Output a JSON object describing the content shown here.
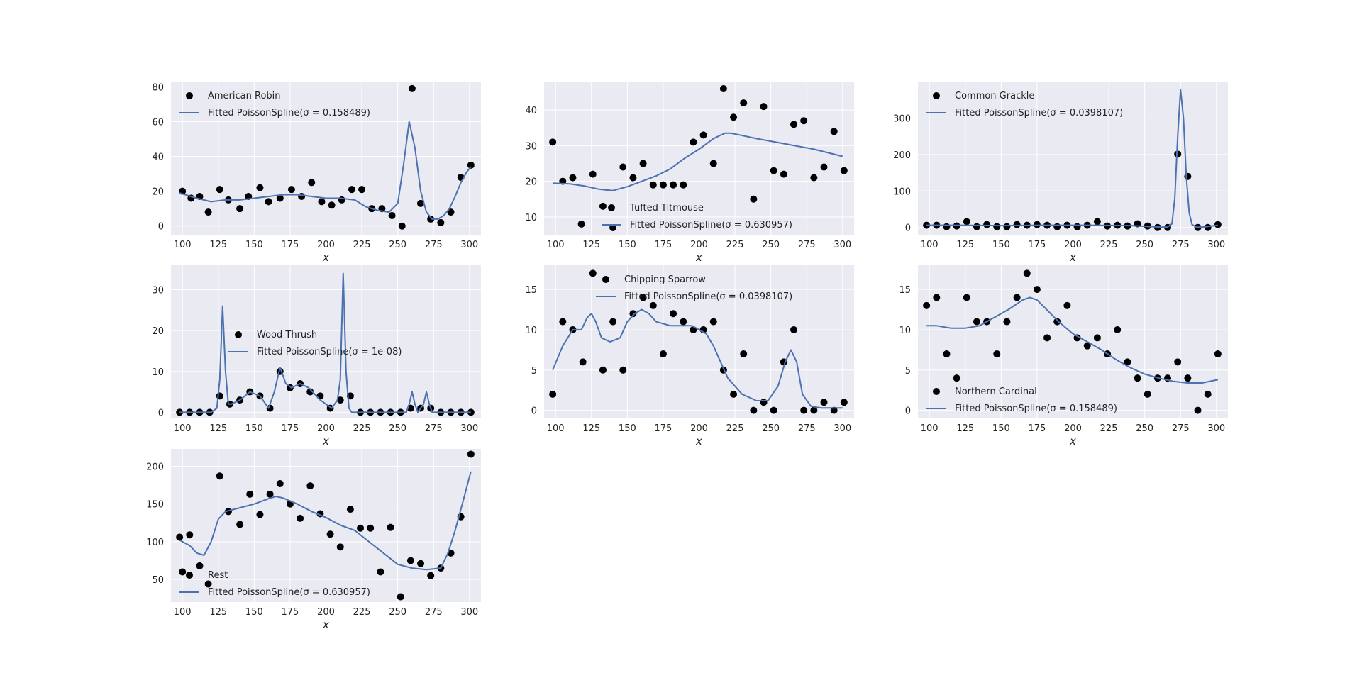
{
  "colors": {
    "background": "#eaeaf2",
    "grid": "#ffffff",
    "line": "#4c72b0",
    "points": "#000000"
  },
  "chart_data": [
    {
      "type": "scatter",
      "xlabel": "x",
      "xlim": [
        92,
        308
      ],
      "ylim": [
        -5,
        83
      ],
      "xticks": [
        100,
        125,
        150,
        175,
        200,
        225,
        250,
        275,
        300
      ],
      "yticks": [
        0,
        20,
        40,
        60,
        80
      ],
      "legend": {
        "placement": "upper-left",
        "entries": [
          "American Robin",
          "Fitted PoissonSpline(σ =  0.158489)"
        ]
      },
      "series": [
        {
          "name": "American Robin",
          "kind": "points",
          "x": [
            100,
            106,
            112,
            118,
            126,
            132,
            140,
            146,
            154,
            160,
            168,
            176,
            183,
            190,
            197,
            204,
            211,
            218,
            225,
            232,
            239,
            246,
            253,
            260,
            266,
            273,
            280,
            287,
            294,
            301
          ],
          "y": [
            20,
            16,
            17,
            8,
            21,
            15,
            10,
            17,
            22,
            14,
            16,
            21,
            17,
            25,
            14,
            12,
            15,
            21,
            21,
            10,
            10,
            6,
            0,
            79,
            13,
            4,
            2,
            8,
            28,
            35
          ]
        },
        {
          "name": "Fitted PoissonSpline(σ =  0.158489)",
          "kind": "line",
          "x": [
            98,
            110,
            120,
            130,
            140,
            150,
            160,
            170,
            180,
            190,
            200,
            210,
            220,
            228,
            236,
            244,
            250,
            254,
            258,
            262,
            266,
            270,
            274,
            278,
            282,
            286,
            290,
            294,
            298,
            301
          ],
          "y": [
            19,
            16,
            14,
            15,
            15,
            16,
            17,
            18,
            18,
            17,
            16,
            16,
            15,
            11,
            9,
            8,
            13,
            35,
            60,
            45,
            20,
            8,
            4,
            4,
            6,
            10,
            17,
            25,
            31,
            34
          ]
        }
      ]
    },
    {
      "type": "scatter",
      "xlabel": "x",
      "xlim": [
        92,
        308
      ],
      "ylim": [
        5,
        48
      ],
      "xticks": [
        100,
        125,
        150,
        175,
        200,
        225,
        250,
        275,
        300
      ],
      "yticks": [
        10,
        20,
        30,
        40
      ],
      "legend": {
        "placement": "lower-right",
        "entries": [
          "Tufted Titmouse",
          "Fitted PoissonSpline(σ =  0.630957)"
        ]
      },
      "series": [
        {
          "name": "Tufted Titmouse",
          "kind": "points",
          "x": [
            98,
            105,
            112,
            118,
            126,
            133,
            140,
            147,
            154,
            161,
            168,
            175,
            182,
            189,
            196,
            203,
            210,
            217,
            224,
            231,
            238,
            245,
            252,
            259,
            266,
            273,
            280,
            287,
            294,
            301
          ],
          "y": [
            31,
            20,
            21,
            8,
            22,
            13,
            7,
            24,
            21,
            25,
            19,
            19,
            19,
            19,
            31,
            33,
            25,
            46,
            38,
            42,
            15,
            41,
            23,
            22,
            36,
            37,
            21,
            24,
            34,
            23
          ]
        },
        {
          "name": "Fitted PoissonSpline(σ =  0.630957)",
          "kind": "line",
          "x": [
            98,
            110,
            120,
            130,
            140,
            150,
            160,
            170,
            180,
            190,
            200,
            210,
            218,
            222,
            226,
            240,
            260,
            280,
            300
          ],
          "y": [
            19.5,
            19.3,
            18.7,
            17.8,
            17.4,
            18.5,
            20,
            21.5,
            23.5,
            26.5,
            29,
            32,
            33.5,
            33.5,
            33.2,
            32,
            30.5,
            29,
            27
          ]
        }
      ]
    },
    {
      "type": "scatter",
      "xlabel": "x",
      "xlim": [
        92,
        308
      ],
      "ylim": [
        -20,
        400
      ],
      "xticks": [
        100,
        125,
        150,
        175,
        200,
        225,
        250,
        275,
        300
      ],
      "yticks": [
        0,
        100,
        200,
        300
      ],
      "legend": {
        "placement": "upper-left",
        "entries": [
          "Common Grackle",
          "Fitted PoissonSpline(σ =  0.0398107)"
        ]
      },
      "series": [
        {
          "name": "Common Grackle",
          "kind": "points",
          "x": [
            98,
            105,
            112,
            119,
            126,
            133,
            140,
            147,
            154,
            161,
            168,
            175,
            182,
            189,
            196,
            203,
            210,
            217,
            224,
            231,
            238,
            245,
            252,
            259,
            266,
            273,
            280,
            287,
            294,
            301
          ],
          "y": [
            6,
            6,
            2,
            4,
            16,
            2,
            8,
            2,
            2,
            8,
            6,
            8,
            6,
            2,
            6,
            2,
            6,
            16,
            4,
            6,
            4,
            10,
            4,
            0,
            0,
            201,
            140,
            0,
            0,
            8
          ]
        },
        {
          "name": "Fitted PoissonSpline(σ =  0.0398107)",
          "kind": "line",
          "x": [
            98,
            120,
            150,
            180,
            210,
            240,
            262,
            266,
            269,
            271,
            273,
            275,
            277,
            279,
            281,
            283,
            286,
            290,
            301
          ],
          "y": [
            6,
            6,
            5,
            6,
            6,
            5,
            1,
            1,
            10,
            80,
            250,
            378,
            300,
            140,
            40,
            8,
            1,
            1,
            6
          ]
        }
      ]
    },
    {
      "type": "scatter",
      "xlabel": "x",
      "xlim": [
        92,
        308
      ],
      "ylim": [
        -1.5,
        36
      ],
      "xticks": [
        100,
        125,
        150,
        175,
        200,
        225,
        250,
        275,
        300
      ],
      "yticks": [
        0,
        10,
        20,
        30
      ],
      "legend": {
        "placement": "center-right",
        "entries": [
          "Wood Thrush",
          "Fitted PoissonSpline(σ =  1e-08)"
        ]
      },
      "series": [
        {
          "name": "Wood Thrush",
          "kind": "points",
          "x": [
            98,
            105,
            112,
            119,
            126,
            133,
            140,
            147,
            154,
            161,
            168,
            175,
            182,
            189,
            196,
            203,
            210,
            217,
            224,
            231,
            238,
            245,
            252,
            259,
            266,
            273,
            280,
            287,
            294,
            301
          ],
          "y": [
            0,
            0,
            0,
            0,
            4,
            2,
            3,
            5,
            4,
            1,
            10,
            6,
            7,
            5,
            4,
            1,
            3,
            4,
            0,
            0,
            0,
            0,
            0,
            1,
            1,
            1,
            0,
            0,
            0,
            0
          ]
        },
        {
          "name": "Fitted PoissonSpline(σ =  1e-08)",
          "kind": "line",
          "x": [
            98,
            120,
            124,
            126,
            128,
            130,
            132,
            134,
            140,
            147,
            154,
            160,
            164,
            168,
            172,
            176,
            182,
            188,
            196,
            204,
            208,
            210,
            212,
            214,
            216,
            218,
            222,
            240,
            256,
            258,
            260,
            262,
            264,
            268,
            270,
            272,
            274,
            280,
            301
          ],
          "y": [
            0,
            0,
            1,
            8,
            26,
            10,
            2,
            2,
            3,
            5,
            4,
            1,
            5,
            11,
            7,
            6,
            7,
            6,
            3,
            1,
            3,
            8,
            34,
            10,
            1,
            0,
            0,
            0,
            0,
            2,
            5,
            2,
            0,
            2,
            5,
            2,
            0,
            0,
            0
          ]
        }
      ]
    },
    {
      "type": "scatter",
      "xlabel": "x",
      "xlim": [
        92,
        308
      ],
      "ylim": [
        -1,
        18
      ],
      "xticks": [
        100,
        125,
        150,
        175,
        200,
        225,
        250,
        275,
        300
      ],
      "yticks": [
        0,
        5,
        10,
        15
      ],
      "legend": {
        "placement": "upper-right",
        "entries": [
          "Chipping Sparrow",
          "Fitted PoissonSpline(σ =  0.0398107)"
        ]
      },
      "series": [
        {
          "name": "Chipping Sparrow",
          "kind": "points",
          "x": [
            98,
            105,
            112,
            119,
            126,
            133,
            140,
            147,
            154,
            161,
            168,
            175,
            182,
            189,
            196,
            203,
            210,
            217,
            224,
            231,
            238,
            245,
            252,
            259,
            266,
            273,
            280,
            287,
            294,
            301
          ],
          "y": [
            2,
            11,
            10,
            6,
            17,
            5,
            11,
            5,
            12,
            14,
            13,
            7,
            12,
            11,
            10,
            10,
            11,
            5,
            2,
            7,
            0,
            1,
            0,
            6,
            10,
            0,
            0,
            1,
            0,
            1
          ]
        },
        {
          "name": "Fitted PoissonSpline(σ =  0.0398107)",
          "kind": "line",
          "x": [
            98,
            105,
            112,
            118,
            122,
            125,
            128,
            132,
            138,
            145,
            150,
            155,
            160,
            165,
            170,
            180,
            195,
            205,
            210,
            215,
            220,
            230,
            240,
            248,
            255,
            260,
            264,
            268,
            272,
            278,
            285,
            300
          ],
          "y": [
            5,
            8,
            10,
            10,
            11.5,
            12,
            11,
            9,
            8.5,
            9,
            11,
            12,
            12.5,
            12,
            11,
            10.5,
            10.5,
            9.5,
            8,
            6,
            4,
            2,
            1.2,
            1.2,
            3,
            6,
            7.5,
            6,
            2,
            0.5,
            0.3,
            0.3
          ]
        }
      ]
    },
    {
      "type": "scatter",
      "xlabel": "x",
      "xlim": [
        92,
        308
      ],
      "ylim": [
        -1,
        18
      ],
      "xticks": [
        100,
        125,
        150,
        175,
        200,
        225,
        250,
        275,
        300
      ],
      "yticks": [
        0,
        5,
        10,
        15
      ],
      "legend": {
        "placement": "lower-left",
        "entries": [
          "Northern Cardinal",
          "Fitted PoissonSpline(σ =  0.158489)"
        ]
      },
      "series": [
        {
          "name": "Northern Cardinal",
          "kind": "points",
          "x": [
            98,
            105,
            112,
            119,
            126,
            133,
            140,
            147,
            154,
            161,
            168,
            175,
            182,
            189,
            196,
            203,
            210,
            217,
            224,
            231,
            238,
            245,
            252,
            259,
            266,
            273,
            280,
            287,
            294,
            301
          ],
          "y": [
            13,
            14,
            7,
            4,
            14,
            11,
            11,
            7,
            11,
            14,
            17,
            15,
            9,
            11,
            13,
            9,
            8,
            9,
            7,
            10,
            6,
            4,
            2,
            4,
            4,
            6,
            4,
            0,
            2,
            7
          ]
        },
        {
          "name": "Fitted PoissonSpline(σ =  0.158489)",
          "kind": "line",
          "x": [
            98,
            105,
            115,
            125,
            135,
            145,
            155,
            165,
            170,
            175,
            180,
            190,
            200,
            210,
            220,
            230,
            240,
            250,
            260,
            270,
            280,
            290,
            301
          ],
          "y": [
            10.5,
            10.5,
            10.2,
            10.2,
            10.5,
            11.5,
            12.5,
            13.7,
            14,
            13.7,
            12.8,
            11,
            9.5,
            8.5,
            7.5,
            6.3,
            5.3,
            4.5,
            4,
            3.6,
            3.4,
            3.4,
            3.8
          ]
        }
      ]
    },
    {
      "type": "scatter",
      "xlabel": "x",
      "xlim": [
        92,
        308
      ],
      "ylim": [
        20,
        223
      ],
      "xticks": [
        100,
        125,
        150,
        175,
        200,
        225,
        250,
        275,
        300
      ],
      "yticks": [
        50,
        100,
        150,
        200
      ],
      "legend": {
        "placement": "lower-left",
        "entries": [
          "Rest",
          "Fitted PoissonSpline(σ =  0.630957)"
        ]
      },
      "series": [
        {
          "name": "Rest",
          "kind": "points",
          "x": [
            98,
            100,
            105,
            112,
            118,
            126,
            132,
            140,
            147,
            154,
            161,
            168,
            175,
            182,
            189,
            196,
            203,
            210,
            217,
            224,
            231,
            238,
            245,
            252,
            259,
            266,
            273,
            280,
            287,
            294,
            301
          ],
          "y": [
            106,
            60,
            109,
            68,
            44,
            187,
            140,
            123,
            163,
            136,
            163,
            177,
            150,
            131,
            174,
            137,
            110,
            93,
            143,
            118,
            118,
            60,
            119,
            27,
            75,
            71,
            55,
            65,
            85,
            133,
            216
          ]
        },
        {
          "name": "Fitted PoissonSpline(σ =  0.630957)",
          "kind": "line",
          "x": [
            98,
            105,
            110,
            115,
            120,
            125,
            130,
            140,
            150,
            160,
            165,
            170,
            180,
            190,
            200,
            210,
            220,
            230,
            240,
            250,
            260,
            270,
            280,
            285,
            290,
            295,
            301
          ],
          "y": [
            102,
            95,
            85,
            82,
            100,
            130,
            140,
            145,
            150,
            157,
            160,
            158,
            150,
            140,
            132,
            122,
            115,
            100,
            85,
            70,
            65,
            63,
            65,
            85,
            115,
            150,
            193
          ]
        }
      ]
    }
  ]
}
